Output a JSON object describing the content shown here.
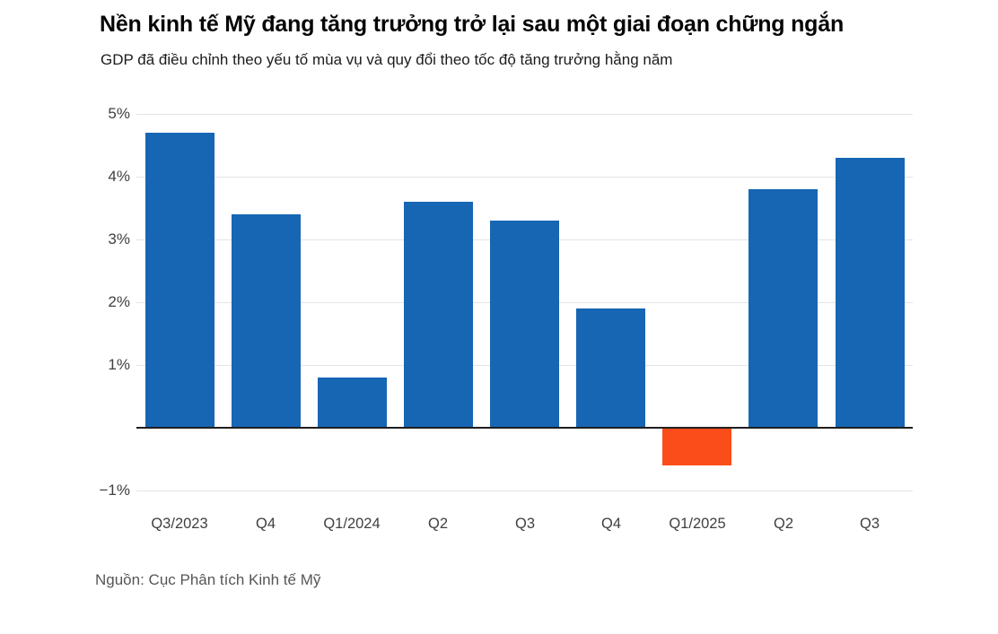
{
  "header": {
    "title": "Nền kinh tế Mỹ đang tăng trưởng trở lại sau một giai đoạn chững ngắn",
    "subtitle": "GDP đã điều chỉnh theo yếu tố mùa vụ và quy đổi theo tốc độ tăng trưởng hằng năm"
  },
  "chart_data": {
    "type": "bar",
    "title": "Nền kinh tế Mỹ đang tăng trưởng trở lại sau một giai đoạn chững ngắn",
    "subtitle": "GDP đã điều chỉnh theo yếu tố mùa vụ và quy đổi theo tốc độ tăng trưởng hằng năm",
    "categories": [
      "Q3/2023",
      "Q4",
      "Q1/2024",
      "Q2",
      "Q3",
      "Q4",
      "Q1/2025",
      "Q2",
      "Q3"
    ],
    "values": [
      4.7,
      3.4,
      0.8,
      3.6,
      3.3,
      1.9,
      -0.6,
      3.8,
      4.3
    ],
    "unit": "%",
    "ylim": [
      -1,
      5
    ],
    "yticks": [
      5,
      4,
      3,
      2,
      1,
      -1
    ],
    "ytick_labels": [
      "5%",
      "4%",
      "3%",
      "2%",
      "1%",
      "−1%"
    ],
    "zero_baseline": true,
    "grid": "horizontal",
    "legend": "none",
    "bar_width_fraction": 0.8,
    "colors": {
      "positive": "#1766b4",
      "negative": "#fb4d1a",
      "gridline": "#e4e4e4",
      "zero_line": "#1f1f1f",
      "tick_label": "#404040"
    }
  },
  "footer": {
    "source": "Nguồn: Cục Phân tích Kinh tế Mỹ"
  }
}
